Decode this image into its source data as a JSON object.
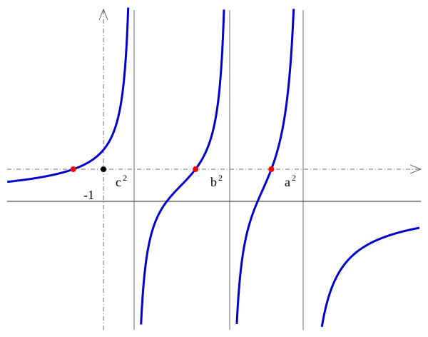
{
  "labels": {
    "minus_one": "-1",
    "c": {
      "base": "c",
      "exp": "2"
    },
    "b": {
      "base": "b",
      "exp": "2"
    },
    "a": {
      "base": "a",
      "exp": "2"
    }
  },
  "colors": {
    "curve": "#0000cc",
    "roots": "#ff0000",
    "point": "#000000",
    "axes": "#333333"
  },
  "poles_order": [
    "c2",
    "b2",
    "a2"
  ],
  "root_count": 3
}
